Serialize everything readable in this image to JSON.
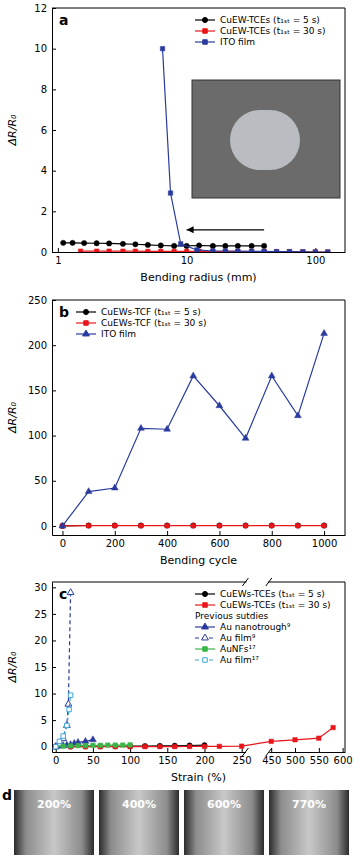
{
  "chart_data": [
    {
      "type": "line",
      "annotations": [
        "a"
      ],
      "x_label": "Bending radius (mm)",
      "y_label": "ΔR/R₀",
      "log": "x",
      "xlim": [
        0.9,
        170
      ],
      "xticks": [
        1,
        10,
        100
      ],
      "ylim": [
        0,
        12
      ],
      "yticks": [
        0,
        2,
        4,
        6,
        8,
        10,
        12
      ],
      "legend": "upper right",
      "series": [
        {
          "name": "CuEW-TCEs (t₁ₛₜ = 5 s)",
          "color": "#000000",
          "marker": "circle",
          "line_style": "solid",
          "x": [
            1.1,
            1.3,
            1.6,
            2,
            2.5,
            3.2,
            4,
            5,
            6.3,
            8,
            10,
            12.5,
            16,
            20,
            25,
            32,
            40
          ],
          "values": [
            0.45,
            0.45,
            0.44,
            0.43,
            0.42,
            0.4,
            0.38,
            0.35,
            0.32,
            0.3,
            0.3,
            0.32,
            0.3,
            0.3,
            0.3,
            0.3,
            0.3
          ]
        },
        {
          "name": "CuEW-TCEs (t₁ₛₜ = 30 s)",
          "color": "#e8161a",
          "marker": "square",
          "line_style": "solid",
          "x": [
            1.5,
            2,
            2.5,
            3.2,
            4,
            5,
            6.3,
            8,
            10,
            12.5,
            16,
            20,
            25,
            32,
            40,
            50,
            63,
            80,
            100,
            125
          ],
          "values": [
            0.04,
            0.04,
            0.04,
            0.04,
            0.04,
            0.03,
            0.03,
            0.03,
            0.03,
            0.03,
            0.02,
            0.02,
            0.02,
            0.02,
            0.02,
            0.01,
            0.01,
            0.01,
            0,
            0
          ]
        },
        {
          "name": "ITO film",
          "color": "#2a3b9e",
          "marker": "square",
          "line_style": "solid",
          "x": [
            6.5,
            7.5,
            9,
            12,
            16,
            20,
            25,
            32,
            40,
            50,
            63,
            80,
            100,
            125
          ],
          "values": [
            10,
            2.9,
            0.4,
            0.1,
            0.05,
            0.05,
            0.04,
            0.03,
            0.03,
            0.02,
            0.02,
            0.01,
            0,
            0
          ]
        }
      ]
    },
    {
      "type": "line",
      "annotations": [
        "b"
      ],
      "x_label": "Bending cycle",
      "y_label": "ΔR/R₀",
      "xlim": [
        -40,
        1080
      ],
      "xticks": [
        0,
        200,
        400,
        600,
        800,
        1000
      ],
      "ylim": [
        -10,
        250
      ],
      "yticks": [
        0,
        50,
        100,
        150,
        200,
        250
      ],
      "legend": "upper left",
      "series": [
        {
          "name": "CuEWs-TCF (t₁ₛₜ = 5 s)",
          "color": "#000000",
          "marker": "circle",
          "line_style": "solid",
          "x": [
            0,
            100,
            200,
            300,
            400,
            500,
            600,
            700,
            800,
            900,
            1000
          ],
          "values": [
            0,
            0.5,
            0.5,
            0.5,
            0.5,
            0.5,
            0.5,
            0.5,
            0.5,
            0.5,
            0.5
          ]
        },
        {
          "name": "CuEWs-TCF (t₁ₛₜ = 30 s)",
          "color": "#e8161a",
          "marker": "square",
          "line_style": "solid",
          "x": [
            0,
            100,
            200,
            300,
            400,
            500,
            600,
            700,
            800,
            900,
            1000
          ],
          "values": [
            0,
            0.3,
            0.3,
            0.3,
            0.3,
            0.3,
            0.3,
            0.3,
            0.3,
            0.3,
            0.3
          ]
        },
        {
          "name": "ITO film",
          "color": "#2a3b9e",
          "marker": "triangle",
          "line_style": "solid",
          "x": [
            0,
            100,
            200,
            300,
            400,
            500,
            600,
            700,
            800,
            900,
            1000
          ],
          "values": [
            0,
            38,
            42,
            108,
            107,
            166,
            133,
            97,
            166,
            122,
            213
          ]
        }
      ]
    },
    {
      "type": "line",
      "annotations": [
        "c",
        "Previous sutdies"
      ],
      "x_label": "Strain (%)",
      "y_label": "ΔR/R₀",
      "xlim": [
        [
          -5,
          255
        ],
        [
          445,
          605
        ]
      ],
      "xticks": [
        0,
        50,
        100,
        150,
        200,
        250,
        450,
        500,
        550,
        600
      ],
      "ylim": [
        -1,
        31
      ],
      "yticks": [
        0,
        5,
        10,
        15,
        20,
        25,
        30
      ],
      "legend": "upper right",
      "series": [
        {
          "name": "CuEWs-TCEs (t₁ₛₜ = 5 s)",
          "color": "#000000",
          "marker": "circle",
          "line_style": "solid",
          "x": [
            0,
            20,
            40,
            60,
            80,
            100,
            120,
            140,
            160,
            180,
            200
          ],
          "values": [
            0,
            0.02,
            0.04,
            0.06,
            0.08,
            0.1,
            0.12,
            0.15,
            0.18,
            0.22,
            0.28
          ]
        },
        {
          "name": "CuEWs-TCEs (t₁ₛₜ = 30 s)",
          "color": "#e8161a",
          "marker": "square",
          "line_style": "solid",
          "x": [
            0,
            20,
            40,
            60,
            80,
            100,
            120,
            140,
            160,
            180,
            200,
            220,
            250,
            450,
            500,
            550,
            580
          ],
          "values": [
            0,
            0,
            0,
            0.01,
            0.01,
            0.02,
            0.02,
            0.03,
            0.03,
            0.04,
            0.05,
            0.06,
            0.1,
            1.0,
            1.3,
            1.6,
            3.6
          ]
        },
        {
          "name": "Au nanotrough⁹",
          "color": "#2a3b9e",
          "marker": "triangle",
          "line_style": "solid",
          "x": [
            0,
            5,
            10,
            15,
            20,
            25,
            30,
            40,
            50
          ],
          "values": [
            0,
            0.1,
            0.2,
            0.3,
            0.4,
            0.6,
            0.8,
            1.0,
            1.3
          ]
        },
        {
          "name": "Au film⁹",
          "color": "#2a3b9e",
          "marker": "triangle-open",
          "line_style": "dashed",
          "x": [
            0,
            5,
            10,
            15,
            17,
            20
          ],
          "values": [
            0,
            0.5,
            1.5,
            4,
            8,
            29
          ]
        },
        {
          "name": "AuNFs¹⁷",
          "color": "#3bb54a",
          "marker": "square",
          "line_style": "solid",
          "x": [
            0,
            10,
            20,
            30,
            40,
            50,
            60,
            70,
            80,
            90,
            100
          ],
          "values": [
            0,
            0.1,
            0.15,
            0.2,
            0.2,
            0.25,
            0.25,
            0.3,
            0.3,
            0.3,
            0.35
          ]
        },
        {
          "name": "Au film¹⁷",
          "color": "#3fa6d6",
          "marker": "square-open",
          "line_style": "dashed",
          "x": [
            0,
            5,
            10,
            15,
            18,
            20
          ],
          "values": [
            0,
            1,
            2,
            4,
            7,
            9.7
          ]
        }
      ]
    }
  ],
  "photos": {
    "label": "d",
    "images": [
      "200%",
      "400%",
      "600%",
      "770%"
    ]
  }
}
